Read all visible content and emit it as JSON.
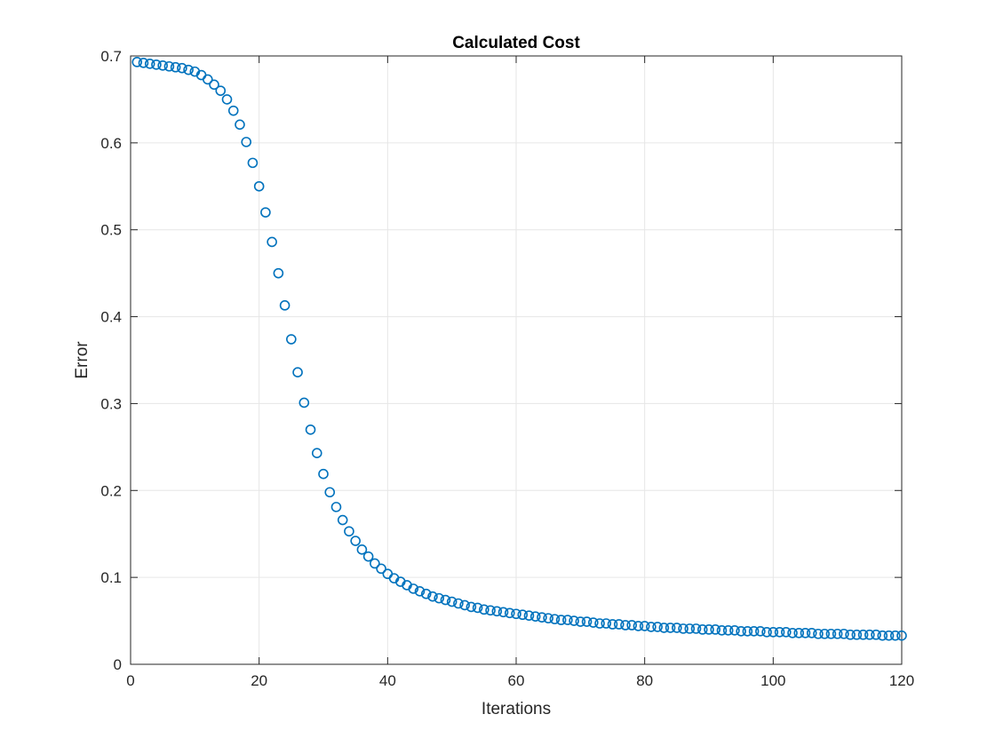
{
  "chart_data": {
    "type": "scatter",
    "title": "Calculated Cost",
    "xlabel": "Iterations",
    "ylabel": "Error",
    "xlim": [
      0,
      120
    ],
    "ylim": [
      0,
      0.7
    ],
    "xticks": [
      0,
      20,
      40,
      60,
      80,
      100,
      120
    ],
    "xtick_labels": [
      "0",
      "20",
      "40",
      "60",
      "80",
      "100",
      "120"
    ],
    "yticks": [
      0,
      0.1,
      0.2,
      0.3,
      0.4,
      0.5,
      0.6,
      0.7
    ],
    "ytick_labels": [
      "0",
      "0.1",
      "0.2",
      "0.3",
      "0.4",
      "0.5",
      "0.6",
      "0.7"
    ],
    "grid": true,
    "marker": "circle-open",
    "marker_color": "#0072BD",
    "series": [
      {
        "x": [
          1,
          2,
          3,
          4,
          5,
          6,
          7,
          8,
          9,
          10,
          11,
          12,
          13,
          14,
          15,
          16,
          17,
          18,
          19,
          20,
          21,
          22,
          23,
          24,
          25,
          26,
          27,
          28,
          29,
          30,
          31,
          32,
          33,
          34,
          35,
          36,
          37,
          38,
          39,
          40,
          41,
          42,
          43,
          44,
          45,
          46,
          47,
          48,
          49,
          50,
          51,
          52,
          53,
          54,
          55,
          56,
          57,
          58,
          59,
          60,
          61,
          62,
          63,
          64,
          65,
          66,
          67,
          68,
          69,
          70,
          71,
          72,
          73,
          74,
          75,
          76,
          77,
          78,
          79,
          80,
          81,
          82,
          83,
          84,
          85,
          86,
          87,
          88,
          89,
          90,
          91,
          92,
          93,
          94,
          95,
          96,
          97,
          98,
          99,
          100,
          101,
          102,
          103,
          104,
          105,
          106,
          107,
          108,
          109,
          110,
          111,
          112,
          113,
          114,
          115,
          116,
          117,
          118,
          119,
          120
        ],
        "y": [
          0.693,
          0.692,
          0.691,
          0.69,
          0.689,
          0.688,
          0.687,
          0.686,
          0.684,
          0.682,
          0.678,
          0.673,
          0.667,
          0.66,
          0.65,
          0.637,
          0.621,
          0.601,
          0.577,
          0.55,
          0.52,
          0.486,
          0.45,
          0.413,
          0.374,
          0.336,
          0.301,
          0.27,
          0.243,
          0.219,
          0.198,
          0.181,
          0.166,
          0.153,
          0.142,
          0.132,
          0.124,
          0.116,
          0.11,
          0.104,
          0.099,
          0.095,
          0.091,
          0.087,
          0.084,
          0.081,
          0.078,
          0.076,
          0.074,
          0.072,
          0.07,
          0.068,
          0.066,
          0.065,
          0.063,
          0.062,
          0.061,
          0.06,
          0.059,
          0.058,
          0.057,
          0.056,
          0.055,
          0.054,
          0.053,
          0.052,
          0.051,
          0.051,
          0.05,
          0.049,
          0.049,
          0.048,
          0.047,
          0.047,
          0.046,
          0.046,
          0.045,
          0.045,
          0.044,
          0.044,
          0.043,
          0.043,
          0.042,
          0.042,
          0.042,
          0.041,
          0.041,
          0.041,
          0.04,
          0.04,
          0.04,
          0.039,
          0.039,
          0.039,
          0.038,
          0.038,
          0.038,
          0.038,
          0.037,
          0.037,
          0.037,
          0.037,
          0.036,
          0.036,
          0.036,
          0.036,
          0.035,
          0.035,
          0.035,
          0.035,
          0.035,
          0.034,
          0.034,
          0.034,
          0.034,
          0.034,
          0.033,
          0.033,
          0.033,
          0.033
        ]
      }
    ]
  }
}
